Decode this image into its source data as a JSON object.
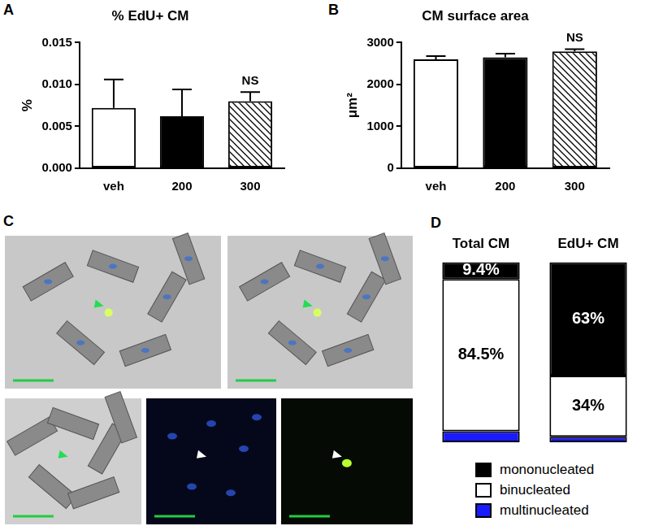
{
  "chart_data": [
    {
      "panel_label": "A",
      "type": "bar",
      "title": "% EdU+ CM",
      "y_label": "%",
      "categories": [
        "veh",
        "200",
        "300"
      ],
      "values": [
        0.0072,
        0.0062,
        0.008
      ],
      "errors": [
        0.0034,
        0.0032,
        0.0011
      ],
      "colors": [
        "#ffffff",
        "#000000",
        "#ffffff"
      ],
      "ylim": [
        0,
        0.015
      ],
      "yticks": [
        {
          "value": 0,
          "label": "0.000"
        },
        {
          "value": 0.005,
          "label": "0.005"
        },
        {
          "value": 0.01,
          "label": "0.010"
        },
        {
          "value": 0.015,
          "label": "0.015"
        }
      ],
      "annotations": [
        {
          "category": "300",
          "text": "NS"
        }
      ],
      "grid": false
    },
    {
      "panel_label": "B",
      "type": "bar",
      "title": "CM surface area",
      "y_label": "μm²",
      "categories": [
        "veh",
        "200",
        "300"
      ],
      "values": [
        2600,
        2650,
        2790
      ],
      "errors": [
        80,
        85,
        55
      ],
      "colors": [
        "#ffffff",
        "#000000",
        "#ffffff"
      ],
      "ylim": [
        0,
        3000
      ],
      "yticks": [
        0,
        1000,
        2000,
        3000
      ],
      "annotations": [
        {
          "category": "300",
          "text": "NS"
        }
      ],
      "grid": false
    },
    {
      "panel_label": "D",
      "type": "bar",
      "stacked": true,
      "categories": [
        "Total CM",
        "EdU+ CM"
      ],
      "series": [
        {
          "name": "mononucleated",
          "color": "#000000",
          "values": [
            9.4,
            63
          ],
          "value_labels": [
            "9.4%",
            "63%"
          ]
        },
        {
          "name": "binucleated",
          "color": "#ffffff",
          "values": [
            84.5,
            34
          ],
          "value_labels": [
            "84.5%",
            "34%"
          ]
        },
        {
          "name": "multinucleated",
          "color": "#1a1aff",
          "values": [
            6.1,
            3
          ],
          "value_labels": [
            null,
            null
          ]
        }
      ],
      "ylim": [
        0,
        100
      ],
      "data_labels": true,
      "tick_labels": "x",
      "legend": "bottom",
      "grid": false
    }
  ],
  "image_panel": {
    "panel_label": "C"
  }
}
